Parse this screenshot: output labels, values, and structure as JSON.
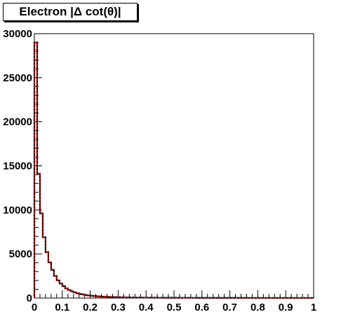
{
  "chart_data": {
    "type": "bar",
    "title": "Electron |Δ cot(θ)|",
    "xlabel": "",
    "ylabel": "",
    "xlim": [
      0,
      1
    ],
    "ylim": [
      0,
      30000
    ],
    "bin_width": 0.01,
    "xticks": [
      "0",
      "0.1",
      "0.2",
      "0.3",
      "0.4",
      "0.5",
      "0.6",
      "0.7",
      "0.8",
      "0.9",
      "1"
    ],
    "yticks": [
      "0",
      "5000",
      "10000",
      "15000",
      "20000",
      "25000",
      "30000"
    ],
    "series": [
      {
        "style": "black-outline-histogram",
        "color": "#000000",
        "values": [
          29000,
          14100,
          9600,
          6900,
          5200,
          4050,
          3200,
          2500,
          2000,
          1650,
          1350,
          1100,
          900,
          760,
          640,
          540,
          460,
          400,
          340,
          300,
          260,
          230,
          200,
          180,
          160,
          145,
          130,
          118,
          108,
          98,
          90,
          82,
          76,
          70,
          65,
          60,
          56,
          52,
          49,
          46,
          43,
          41,
          39,
          37,
          35,
          33,
          32,
          31,
          30,
          29,
          28,
          27,
          26,
          25,
          24,
          24,
          23,
          23,
          22,
          22,
          21,
          21,
          20,
          20,
          20,
          19,
          19,
          19,
          18,
          18,
          18,
          18,
          17,
          17,
          17,
          17,
          16,
          16,
          16,
          16,
          16,
          15,
          15,
          15,
          15,
          15,
          15,
          14,
          14,
          14,
          14,
          14,
          14,
          14,
          13,
          13,
          13,
          13,
          13,
          13
        ]
      },
      {
        "style": "red-outline-histogram",
        "color": "#ff0000",
        "values": [
          29000,
          14100,
          9600,
          6900,
          5200,
          4050,
          3200,
          2500,
          2000,
          1650,
          1350,
          1100,
          900,
          760,
          640,
          540,
          460,
          400,
          340,
          300,
          260,
          230,
          200,
          180,
          160,
          145,
          130,
          118,
          108,
          98,
          90,
          82,
          76,
          70,
          65,
          60,
          56,
          52,
          49,
          46,
          43,
          41,
          39,
          37,
          35,
          33,
          32,
          31,
          30,
          29,
          28,
          27,
          26,
          25,
          24,
          24,
          23,
          23,
          22,
          22,
          21,
          21,
          20,
          20,
          20,
          19,
          19,
          19,
          18,
          18,
          18,
          18,
          17,
          17,
          17,
          17,
          16,
          16,
          16,
          16,
          16,
          15,
          15,
          15,
          15,
          15,
          15,
          14,
          14,
          14,
          14,
          14,
          14,
          14,
          13,
          13,
          13,
          13,
          13,
          13
        ]
      }
    ]
  }
}
